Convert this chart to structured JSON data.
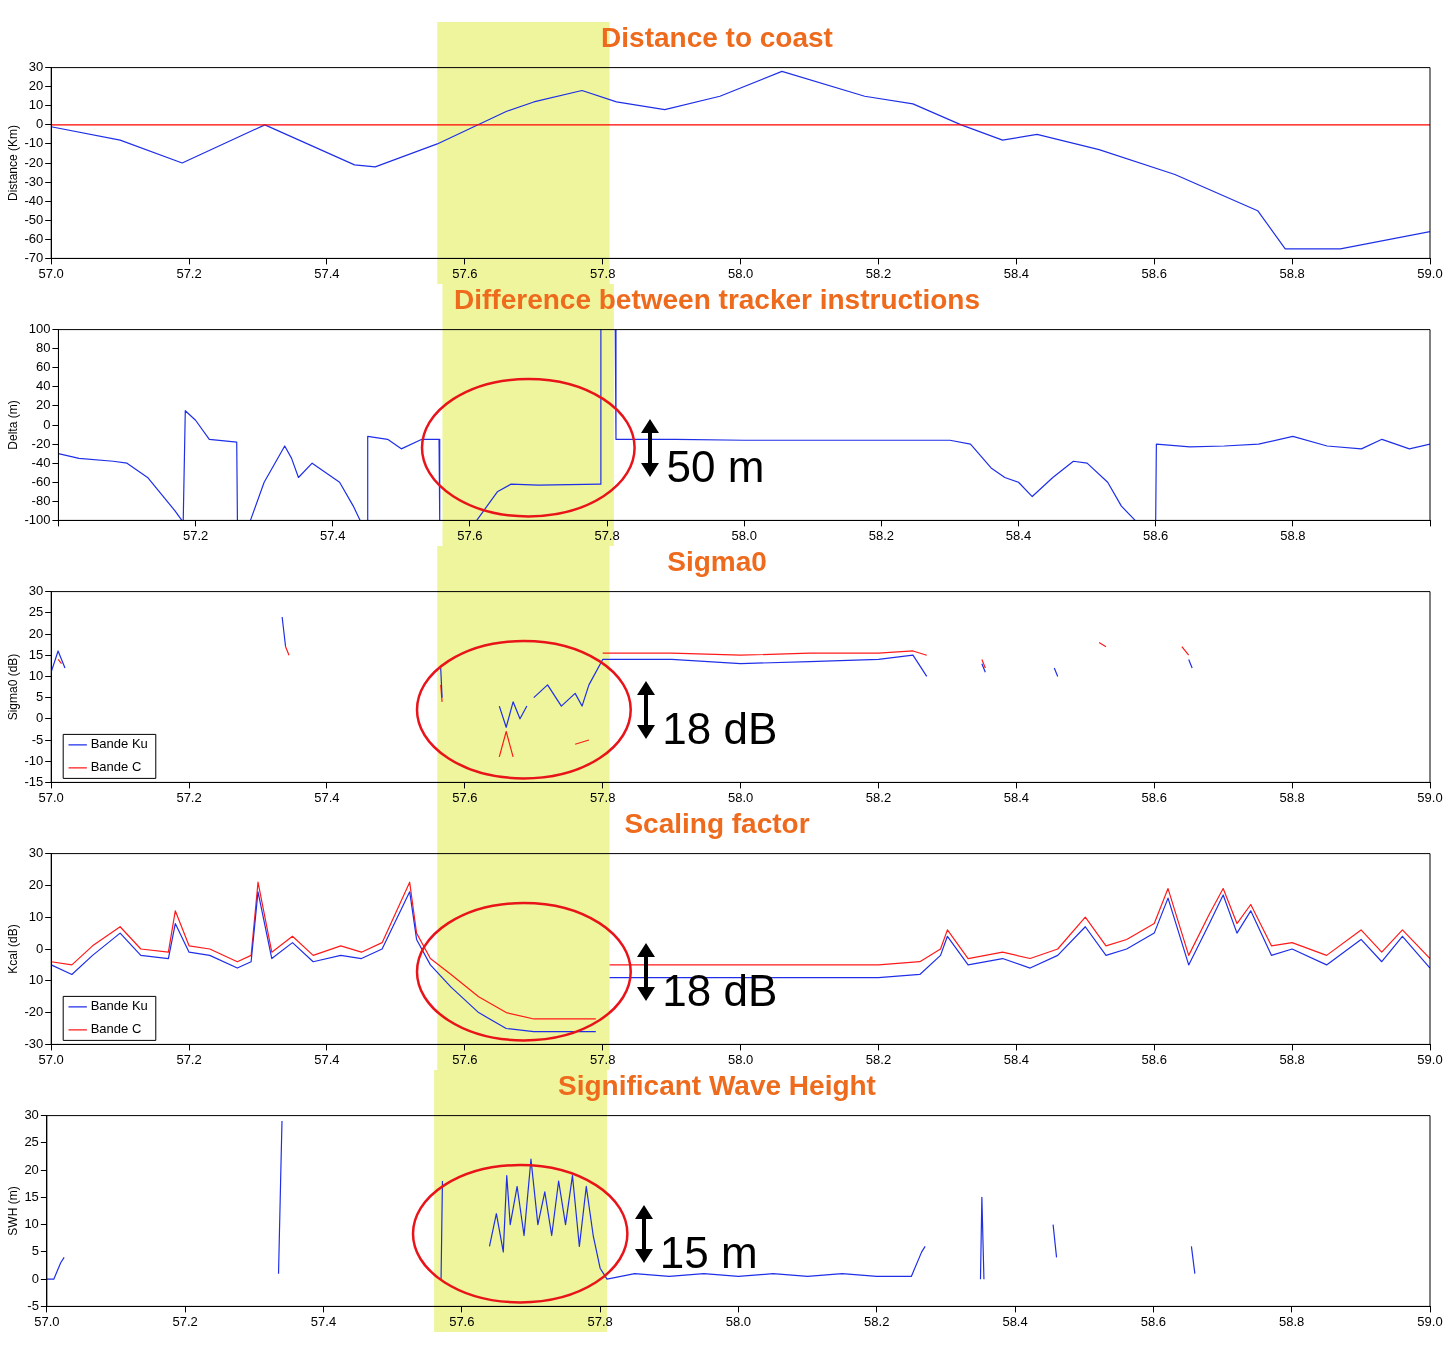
{
  "chart_data": [
    {
      "type": "line",
      "title": "Distance to coast",
      "ylabel": "Distance (Km)",
      "marker": "none",
      "grid": false,
      "legend": false,
      "xlim": [
        57,
        59
      ],
      "xticks": [
        {
          "value": 57,
          "label": "57.0"
        },
        {
          "value": 57.2,
          "label": "57.2"
        },
        {
          "value": 57.4,
          "label": "57.4"
        },
        {
          "value": 57.6,
          "label": "57.6"
        },
        {
          "value": 57.8,
          "label": "57.8"
        },
        {
          "value": 58,
          "label": "58.0"
        },
        {
          "value": 58.2,
          "label": "58.2"
        },
        {
          "value": 58.4,
          "label": "58.4"
        },
        {
          "value": 58.6,
          "label": "58.6"
        },
        {
          "value": 58.8,
          "label": "58.8"
        },
        {
          "value": 59,
          "label": "59.0"
        }
      ],
      "ylim": [
        -70,
        30
      ],
      "yticks": [
        30,
        20,
        10,
        0,
        -10,
        -20,
        -30,
        -40,
        -50,
        -60,
        -70
      ],
      "bands": [
        {
          "axis": "x",
          "from": 57.56,
          "to": 57.81,
          "color": "#eef59c"
        }
      ],
      "ref_lines": [
        {
          "axis": "y",
          "value": 0,
          "color": "#ff0000"
        }
      ],
      "series": [
        {
          "color": "#1f2fe8",
          "x": [
            57.0,
            57.1,
            57.19,
            57.31,
            57.44,
            57.47,
            57.56,
            57.66,
            57.7,
            57.77,
            57.82,
            57.89,
            57.97,
            58.06,
            58.18,
            58.25,
            58.32,
            58.38,
            58.43,
            58.52,
            58.63,
            58.75,
            58.79,
            58.87,
            59.0
          ],
          "values": [
            -1,
            -8,
            -20,
            0,
            -21,
            -22,
            -10,
            7,
            12,
            18,
            12,
            8,
            15,
            28,
            15,
            11,
            0,
            -8,
            -5,
            -13,
            -26,
            -45,
            -65,
            -65,
            -56
          ]
        }
      ]
    },
    {
      "type": "line",
      "title": "Difference between tracker instructions",
      "ylabel": "Delta (m)",
      "marker": "none",
      "grid": false,
      "legend": false,
      "xlim": [
        57,
        59
      ],
      "xticks": [
        {
          "value": 57,
          "label": null
        },
        {
          "value": 57.2,
          "label": "57.2"
        },
        {
          "value": 57.4,
          "label": "57.4"
        },
        {
          "value": 57.6,
          "label": "57.6"
        },
        {
          "value": 57.8,
          "label": "57.8"
        },
        {
          "value": 58,
          "label": "58.0"
        },
        {
          "value": 58.2,
          "label": "58.2"
        },
        {
          "value": 58.4,
          "label": "58.4"
        },
        {
          "value": 58.6,
          "label": "58.6"
        },
        {
          "value": 58.8,
          "label": "58.8"
        },
        {
          "value": 59,
          "label": null
        }
      ],
      "ylim": [
        -100,
        100
      ],
      "yticks": [
        100,
        80,
        60,
        40,
        20,
        0,
        -20,
        -40,
        -60,
        -80,
        -100
      ],
      "bands": [
        {
          "axis": "x",
          "from": 57.56,
          "to": 57.81,
          "color": "#eef59c"
        }
      ],
      "annotations": [
        "50 m"
      ],
      "series": [
        {
          "color": "#1f2fe8",
          "x": [
            57.0,
            57.03,
            57.08,
            57.1,
            57.13,
            57.17,
            57.18,
            57.181,
            57.182,
            57.185,
            57.2,
            57.22,
            57.26,
            57.261,
            57.262,
            57.28,
            57.3,
            57.33,
            57.34,
            57.35,
            57.37,
            57.41,
            57.43,
            57.44,
            57.441,
            57.45,
            57.451,
            57.48,
            57.5,
            57.53,
            57.555,
            57.556,
            57.557,
            57.61,
            57.64,
            57.66,
            57.7,
            57.79,
            57.791,
            57.792,
            57.812,
            57.813,
            57.9,
            58.0,
            58.15,
            58.3,
            58.33,
            58.36,
            58.38,
            58.4,
            58.42,
            58.45,
            58.48,
            58.5,
            58.53,
            58.55,
            58.57,
            58.571,
            58.6,
            58.601,
            58.65,
            58.7,
            58.75,
            58.8,
            58.85,
            58.9,
            58.93,
            58.97,
            59.0
          ],
          "values": [
            -30,
            -35,
            -38,
            -40,
            -55,
            -90,
            -100,
            null,
            -100,
            15,
            5,
            -15,
            -18,
            -100,
            null,
            -100,
            -60,
            -22,
            -35,
            -55,
            -40,
            -60,
            -85,
            -100,
            null,
            -100,
            -12,
            -15,
            -25,
            -15,
            -15,
            -100,
            null,
            -100,
            -70,
            -62,
            -63,
            -62,
            100,
            null,
            100,
            -15,
            -15,
            -16,
            -16,
            -16,
            -20,
            -45,
            -55,
            -60,
            -75,
            -55,
            -38,
            -40,
            -60,
            -85,
            -100,
            null,
            -100,
            -20,
            -23,
            -22,
            -20,
            -12,
            -22,
            -25,
            -15,
            -25,
            -20
          ]
        }
      ]
    },
    {
      "type": "line",
      "title": "Sigma0",
      "ylabel": "Sigma0 (dB)",
      "marker": "none",
      "grid": false,
      "legend": "bottom left",
      "xlim": [
        57,
        59
      ],
      "xticks": [
        {
          "value": 57,
          "label": "57.0"
        },
        {
          "value": 57.2,
          "label": "57.2"
        },
        {
          "value": 57.4,
          "label": "57.4"
        },
        {
          "value": 57.6,
          "label": "57.6"
        },
        {
          "value": 57.8,
          "label": "57.8"
        },
        {
          "value": 58,
          "label": "58.0"
        },
        {
          "value": 58.2,
          "label": "58.2"
        },
        {
          "value": 58.4,
          "label": "58.4"
        },
        {
          "value": 58.6,
          "label": "58.6"
        },
        {
          "value": 58.8,
          "label": "58.8"
        },
        {
          "value": 59,
          "label": "59.0"
        }
      ],
      "ylim": [
        -15,
        30
      ],
      "yticks": [
        30,
        25,
        20,
        15,
        10,
        5,
        0,
        -5,
        -10,
        -15
      ],
      "bands": [
        {
          "axis": "x",
          "from": 57.56,
          "to": 57.81,
          "color": "#eef59c"
        }
      ],
      "annotations": [
        "18 dB"
      ],
      "series": [
        {
          "name": "Bande Ku",
          "color": "#1f2fe8",
          "x": [
            57.0,
            57.01,
            57.02,
            57.025,
            57.335,
            57.34,
            57.345,
            57.565,
            57.567,
            57.568,
            57.65,
            57.66,
            57.67,
            57.68,
            57.69,
            57.695,
            57.7,
            57.72,
            57.74,
            57.76,
            57.77,
            57.78,
            57.8,
            57.85,
            57.9,
            58.0,
            58.1,
            58.2,
            58.25,
            58.27,
            58.275,
            58.35,
            58.355,
            58.36,
            58.455,
            58.46,
            58.465,
            58.65,
            58.655
          ],
          "values": [
            11,
            16,
            12,
            null,
            24,
            17,
            null,
            12,
            5,
            null,
            3,
            -2,
            4,
            0,
            3,
            null,
            5,
            8,
            3,
            6,
            3,
            8,
            14,
            14,
            14,
            13,
            13.5,
            14,
            15,
            10,
            null,
            13,
            11,
            null,
            12,
            10,
            null,
            14,
            12
          ]
        },
        {
          "name": "Bande C",
          "color": "#ff1a1a",
          "x": [
            57.01,
            57.015,
            57.02,
            57.34,
            57.345,
            57.35,
            57.565,
            57.567,
            57.568,
            57.65,
            57.66,
            57.67,
            57.675,
            57.76,
            57.78,
            57.785,
            57.8,
            57.9,
            58.0,
            58.1,
            58.2,
            58.25,
            58.27,
            58.275,
            58.35,
            58.355,
            58.36,
            58.52,
            58.53,
            58.535,
            58.64,
            58.65
          ],
          "values": [
            14,
            13,
            null,
            17,
            15,
            null,
            8,
            4,
            null,
            -9,
            -3,
            -9,
            null,
            -6,
            -5,
            null,
            15.5,
            15.5,
            15,
            15.5,
            15.5,
            16,
            15,
            null,
            14,
            12,
            null,
            18,
            17,
            null,
            17,
            15
          ]
        }
      ]
    },
    {
      "type": "line",
      "title": "Scaling factor",
      "ylabel": "Kcal (dB)",
      "marker": "none",
      "grid": false,
      "legend": "bottom left",
      "xlim": [
        57,
        59
      ],
      "xticks": [
        {
          "value": 57,
          "label": "57.0"
        },
        {
          "value": 57.2,
          "label": "57.2"
        },
        {
          "value": 57.4,
          "label": "57.4"
        },
        {
          "value": 57.6,
          "label": "57.6"
        },
        {
          "value": 57.8,
          "label": "57.8"
        },
        {
          "value": 58,
          "label": "58.0"
        },
        {
          "value": 58.2,
          "label": "58.2"
        },
        {
          "value": 58.4,
          "label": "58.4"
        },
        {
          "value": 58.6,
          "label": "58.6"
        },
        {
          "value": 58.8,
          "label": "58.8"
        },
        {
          "value": 59,
          "label": "59.0"
        }
      ],
      "ylim": [
        -30,
        30
      ],
      "yticks": [
        30,
        20,
        10,
        0,
        {
          "value": -10,
          "label": "10"
        },
        -20,
        -30
      ],
      "bands": [
        {
          "axis": "x",
          "from": 57.56,
          "to": 57.81,
          "color": "#eef59c"
        }
      ],
      "annotations": [
        "18 dB"
      ],
      "series": [
        {
          "name": "Bande Ku",
          "color": "#1f2fe8",
          "x": [
            57.0,
            57.03,
            57.06,
            57.1,
            57.13,
            57.17,
            57.18,
            57.2,
            57.23,
            57.27,
            57.29,
            57.3,
            57.32,
            57.35,
            57.38,
            57.42,
            57.45,
            57.48,
            57.52,
            57.53,
            57.55,
            57.58,
            57.62,
            57.66,
            57.7,
            57.79,
            57.8,
            57.81,
            58.0,
            58.2,
            58.26,
            58.29,
            58.3,
            58.33,
            58.38,
            58.42,
            58.46,
            58.5,
            58.53,
            58.56,
            58.6,
            58.62,
            58.65,
            58.68,
            58.7,
            58.72,
            58.74,
            58.77,
            58.8,
            58.85,
            58.9,
            58.93,
            58.96,
            59.0
          ],
          "values": [
            -5,
            -8,
            -2,
            5,
            -2,
            -3,
            8,
            -1,
            -2,
            -6,
            -4,
            18,
            -3,
            2,
            -4,
            -2,
            -3,
            0,
            18,
            3,
            -5,
            -12,
            -20,
            -25,
            -26,
            -26,
            null,
            -9,
            -9,
            -9,
            -8,
            -2,
            4,
            -5,
            -3,
            -6,
            -2,
            7,
            -2,
            0,
            5,
            16,
            -5,
            8,
            17,
            5,
            12,
            -2,
            0,
            -5,
            3,
            -4,
            4,
            -6
          ]
        },
        {
          "name": "Bande C",
          "color": "#ff1a1a",
          "x": [
            57.0,
            57.03,
            57.06,
            57.1,
            57.13,
            57.17,
            57.18,
            57.2,
            57.23,
            57.27,
            57.29,
            57.3,
            57.32,
            57.35,
            57.38,
            57.42,
            57.45,
            57.48,
            57.52,
            57.53,
            57.55,
            57.58,
            57.62,
            57.66,
            57.7,
            57.79,
            57.8,
            57.81,
            58.0,
            58.2,
            58.26,
            58.29,
            58.3,
            58.33,
            58.38,
            58.42,
            58.46,
            58.5,
            58.53,
            58.56,
            58.6,
            58.62,
            58.65,
            58.68,
            58.7,
            58.72,
            58.74,
            58.77,
            58.8,
            58.85,
            58.9,
            58.93,
            58.96,
            59.0
          ],
          "values": [
            -4,
            -5,
            1,
            7,
            0,
            -1,
            12,
            1,
            0,
            -4,
            -2,
            21,
            -1,
            4,
            -2,
            1,
            -1,
            2,
            21,
            5,
            -3,
            -8,
            -15,
            -20,
            -22,
            -22,
            null,
            -5,
            -5,
            -5,
            -4,
            0,
            6,
            -3,
            -1,
            -3,
            0,
            10,
            1,
            3,
            8,
            19,
            -2,
            11,
            19,
            8,
            14,
            1,
            2,
            -2,
            6,
            -1,
            6,
            -3
          ]
        }
      ]
    },
    {
      "type": "line",
      "title": "Significant Wave Height",
      "ylabel": "SWH (m)",
      "marker": "none",
      "grid": false,
      "legend": false,
      "xlim": [
        57,
        59
      ],
      "xticks": [
        {
          "value": 57,
          "label": "57.0"
        },
        {
          "value": 57.2,
          "label": "57.2"
        },
        {
          "value": 57.4,
          "label": "57.4"
        },
        {
          "value": 57.6,
          "label": "57.6"
        },
        {
          "value": 57.8,
          "label": "57.8"
        },
        {
          "value": 58,
          "label": "58.0"
        },
        {
          "value": 58.2,
          "label": "58.2"
        },
        {
          "value": 58.4,
          "label": "58.4"
        },
        {
          "value": 58.6,
          "label": "58.6"
        },
        {
          "value": 58.8,
          "label": "58.8"
        },
        {
          "value": 59,
          "label": "59.0"
        }
      ],
      "ylim": [
        -5,
        30
      ],
      "yticks": [
        30,
        25,
        20,
        15,
        10,
        5,
        0,
        -5
      ],
      "bands": [
        {
          "axis": "x",
          "from": 57.56,
          "to": 57.81,
          "color": "#eef59c"
        }
      ],
      "annotations": [
        "15 m"
      ],
      "series": [
        {
          "color": "#1f2fe8",
          "x": [
            57.0,
            57.01,
            57.02,
            57.025,
            57.03,
            57.335,
            57.338,
            57.34,
            57.345,
            57.57,
            57.572,
            57.575,
            57.64,
            57.65,
            57.66,
            57.665,
            57.67,
            57.68,
            57.69,
            57.7,
            57.71,
            57.72,
            57.73,
            57.74,
            57.75,
            57.76,
            57.77,
            57.78,
            57.79,
            57.8,
            57.81,
            57.85,
            57.9,
            57.95,
            58.0,
            58.05,
            58.1,
            58.15,
            58.2,
            58.25,
            58.265,
            58.27,
            58.275,
            58.35,
            58.352,
            58.355,
            58.36,
            58.455,
            58.46,
            58.465,
            58.655,
            58.66
          ],
          "values": [
            0,
            0,
            3,
            4,
            null,
            1,
            18,
            29,
            null,
            0,
            18,
            null,
            6,
            12,
            5,
            19,
            10,
            17,
            8,
            22,
            10,
            16,
            8,
            18,
            10,
            19,
            6,
            17,
            8,
            2,
            0,
            1,
            0.5,
            1,
            0.5,
            1,
            0.5,
            1,
            0.5,
            0.5,
            5,
            6,
            null,
            0,
            15,
            0,
            null,
            10,
            4,
            null,
            6,
            1
          ]
        }
      ]
    }
  ]
}
